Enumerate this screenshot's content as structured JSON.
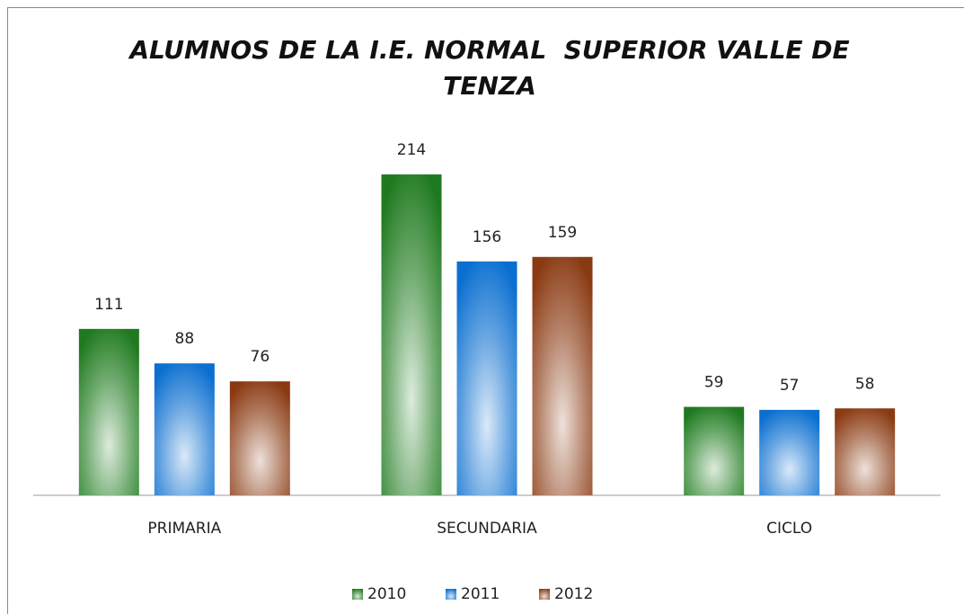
{
  "chart_data": {
    "type": "bar",
    "title": "ALUMNOS DE LA I.E. NORMAL  SUPERIOR VALLE DE TENZA",
    "categories": [
      "PRIMARIA",
      "SECUNDARIA",
      "CICLO"
    ],
    "series": [
      {
        "name": "2010",
        "color": "#1f7a1f",
        "values": [
          111,
          214,
          59
        ]
      },
      {
        "name": "2011",
        "color": "#0a6fd0",
        "values": [
          88,
          156,
          57
        ]
      },
      {
        "name": "2012",
        "color": "#8a3a12",
        "values": [
          76,
          159,
          58
        ]
      }
    ],
    "ylim": [
      0,
      250
    ],
    "legend": "bottom"
  }
}
